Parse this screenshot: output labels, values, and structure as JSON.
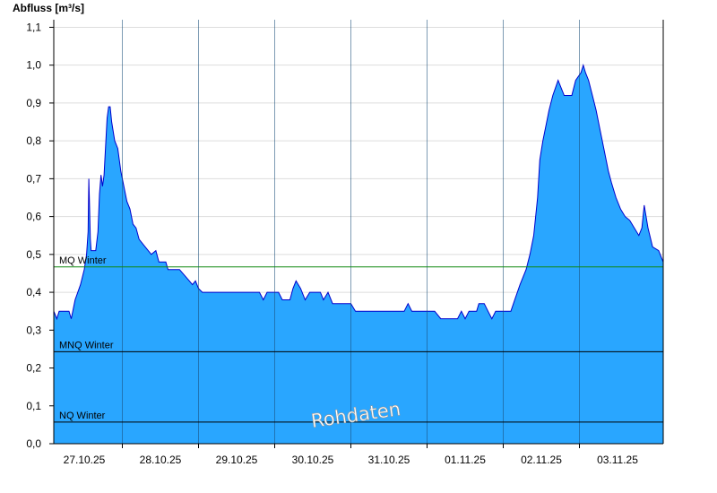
{
  "chart_data": {
    "type": "area",
    "ylabel": "Abfluss [m³/s]",
    "xlabel": "",
    "ylim": [
      0,
      1.12
    ],
    "xlim": [
      -0.4,
      7.6
    ],
    "grid": true,
    "yticks": [
      "0,0",
      "0,1",
      "0,2",
      "0,3",
      "0,4",
      "0,5",
      "0,6",
      "0,7",
      "0,8",
      "0,9",
      "1,0",
      "1,1"
    ],
    "xticks": [
      "27.10.25",
      "28.10.25",
      "29.10.25",
      "30.10.25",
      "31.10.25",
      "01.11.25",
      "02.11.25",
      "03.11.25"
    ],
    "x_day_separators": [
      0.5,
      1.5,
      2.5,
      3.5,
      4.5,
      5.5,
      6.5
    ],
    "watermark": "Rohdaten",
    "colors": {
      "fill": "#29a6ff",
      "line": "#0000cc",
      "mq": "#118811",
      "threshold": "#000000",
      "grid": "#dddddd"
    },
    "reference_lines": [
      {
        "label": "MQ Winter",
        "value": 0.467,
        "color": "#118811"
      },
      {
        "label": "MNQ Winter",
        "value": 0.243,
        "color": "#000000"
      },
      {
        "label": "NQ Winter",
        "value": 0.057,
        "color": "#000000"
      }
    ],
    "series": [
      {
        "values": [
          [
            -0.4,
            0.35
          ],
          [
            -0.36,
            0.33
          ],
          [
            -0.33,
            0.35
          ],
          [
            -0.2,
            0.35
          ],
          [
            -0.17,
            0.33
          ],
          [
            -0.12,
            0.38
          ],
          [
            -0.05,
            0.42
          ],
          [
            0.0,
            0.46
          ],
          [
            0.03,
            0.5
          ],
          [
            0.05,
            0.56
          ],
          [
            0.06,
            0.7
          ],
          [
            0.07,
            0.62
          ],
          [
            0.08,
            0.54
          ],
          [
            0.09,
            0.51
          ],
          [
            0.15,
            0.51
          ],
          [
            0.18,
            0.56
          ],
          [
            0.2,
            0.66
          ],
          [
            0.22,
            0.71
          ],
          [
            0.24,
            0.68
          ],
          [
            0.26,
            0.71
          ],
          [
            0.3,
            0.86
          ],
          [
            0.32,
            0.89
          ],
          [
            0.34,
            0.89
          ],
          [
            0.36,
            0.85
          ],
          [
            0.4,
            0.8
          ],
          [
            0.44,
            0.78
          ],
          [
            0.48,
            0.72
          ],
          [
            0.52,
            0.68
          ],
          [
            0.56,
            0.64
          ],
          [
            0.6,
            0.62
          ],
          [
            0.64,
            0.58
          ],
          [
            0.68,
            0.57
          ],
          [
            0.72,
            0.54
          ],
          [
            0.8,
            0.52
          ],
          [
            0.88,
            0.5
          ],
          [
            0.94,
            0.51
          ],
          [
            0.98,
            0.48
          ],
          [
            1.07,
            0.48
          ],
          [
            1.1,
            0.46
          ],
          [
            1.25,
            0.46
          ],
          [
            1.38,
            0.43
          ],
          [
            1.42,
            0.42
          ],
          [
            1.46,
            0.43
          ],
          [
            1.5,
            0.41
          ],
          [
            1.55,
            0.4
          ],
          [
            1.8,
            0.4
          ],
          [
            2.0,
            0.4
          ],
          [
            2.3,
            0.4
          ],
          [
            2.35,
            0.38
          ],
          [
            2.4,
            0.4
          ],
          [
            2.55,
            0.4
          ],
          [
            2.6,
            0.38
          ],
          [
            2.7,
            0.38
          ],
          [
            2.74,
            0.41
          ],
          [
            2.78,
            0.43
          ],
          [
            2.84,
            0.41
          ],
          [
            2.9,
            0.38
          ],
          [
            2.96,
            0.4
          ],
          [
            3.1,
            0.4
          ],
          [
            3.14,
            0.38
          ],
          [
            3.2,
            0.4
          ],
          [
            3.26,
            0.37
          ],
          [
            3.5,
            0.37
          ],
          [
            3.56,
            0.35
          ],
          [
            4.0,
            0.35
          ],
          [
            4.2,
            0.35
          ],
          [
            4.25,
            0.37
          ],
          [
            4.3,
            0.35
          ],
          [
            4.6,
            0.35
          ],
          [
            4.68,
            0.33
          ],
          [
            4.9,
            0.33
          ],
          [
            4.95,
            0.35
          ],
          [
            5.0,
            0.33
          ],
          [
            5.05,
            0.35
          ],
          [
            5.15,
            0.35
          ],
          [
            5.18,
            0.37
          ],
          [
            5.25,
            0.37
          ],
          [
            5.3,
            0.35
          ],
          [
            5.35,
            0.33
          ],
          [
            5.4,
            0.35
          ],
          [
            5.6,
            0.35
          ],
          [
            5.65,
            0.38
          ],
          [
            5.72,
            0.42
          ],
          [
            5.8,
            0.46
          ],
          [
            5.85,
            0.5
          ],
          [
            5.9,
            0.55
          ],
          [
            5.95,
            0.65
          ],
          [
            5.98,
            0.75
          ],
          [
            6.02,
            0.8
          ],
          [
            6.06,
            0.84
          ],
          [
            6.1,
            0.88
          ],
          [
            6.15,
            0.92
          ],
          [
            6.22,
            0.96
          ],
          [
            6.3,
            0.92
          ],
          [
            6.4,
            0.92
          ],
          [
            6.45,
            0.96
          ],
          [
            6.52,
            0.98
          ],
          [
            6.55,
            1.0
          ],
          [
            6.58,
            0.98
          ],
          [
            6.62,
            0.96
          ],
          [
            6.67,
            0.92
          ],
          [
            6.72,
            0.88
          ],
          [
            6.76,
            0.84
          ],
          [
            6.8,
            0.8
          ],
          [
            6.84,
            0.76
          ],
          [
            6.88,
            0.72
          ],
          [
            6.92,
            0.69
          ],
          [
            6.98,
            0.65
          ],
          [
            7.04,
            0.62
          ],
          [
            7.1,
            0.6
          ],
          [
            7.16,
            0.59
          ],
          [
            7.22,
            0.57
          ],
          [
            7.28,
            0.55
          ],
          [
            7.32,
            0.57
          ],
          [
            7.35,
            0.63
          ],
          [
            7.4,
            0.57
          ],
          [
            7.46,
            0.52
          ],
          [
            7.54,
            0.51
          ],
          [
            7.6,
            0.48
          ]
        ]
      }
    ]
  }
}
